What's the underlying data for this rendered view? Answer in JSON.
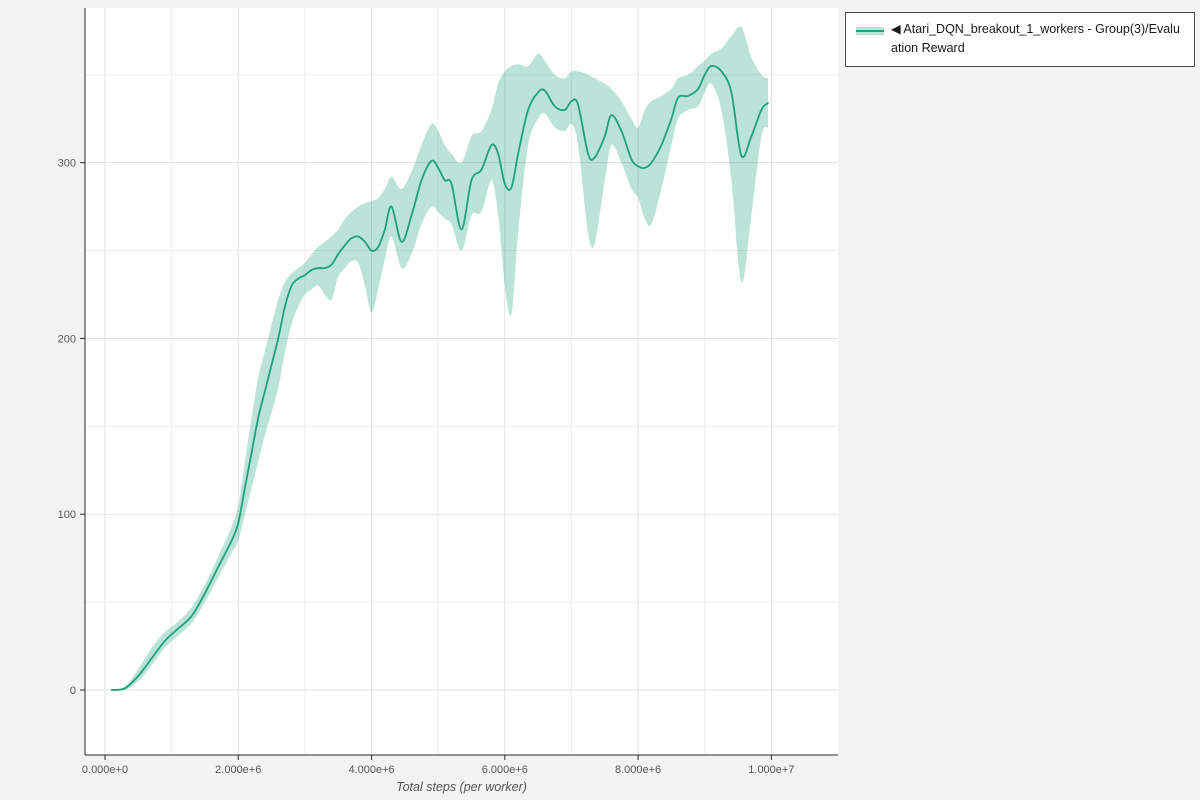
{
  "page": {
    "background": "#f3f3f4",
    "plot_background": "#ffffff"
  },
  "legend": {
    "label": "◀ Atari_DQN_breakout_1_workers - Group(3)/Evaluation Reward",
    "border_color": "#4a4a4a",
    "background": "#ffffff"
  },
  "chart_data": {
    "type": "line",
    "title": "",
    "xlabel": "Total steps (per worker)",
    "ylabel": "",
    "legend_position": "top-right-outside",
    "grid": true,
    "xlim": [
      -300000,
      11000000
    ],
    "ylim": [
      -37,
      388
    ],
    "x_tick_values": [
      0,
      2000000,
      4000000,
      6000000,
      8000000,
      10000000
    ],
    "x_tick_labels": [
      "0.000e+0",
      "2.000e+6",
      "4.000e+6",
      "6.000e+6",
      "8.000e+6",
      "1.000e+7"
    ],
    "y_tick_values": [
      0,
      100,
      200,
      300
    ],
    "y_tick_labels": [
      "0",
      "100",
      "200",
      "300"
    ],
    "x_minor_step": 1000000,
    "y_minor_step": 50,
    "series": [
      {
        "name": "Atari_DQN_breakout_1_workers - Group(3)/Evaluation Reward",
        "color": "#1fa179",
        "band_color": "#1fa179",
        "band_opacity": 0.3,
        "x": [
          100000,
          300000,
          500000,
          700000,
          900000,
          1100000,
          1300000,
          1500000,
          1700000,
          1900000,
          2000000,
          2100000,
          2200000,
          2300000,
          2400000,
          2500000,
          2600000,
          2700000,
          2800000,
          2900000,
          3000000,
          3100000,
          3200000,
          3300000,
          3400000,
          3500000,
          3600000,
          3700000,
          3800000,
          3900000,
          4000000,
          4100000,
          4200000,
          4300000,
          4450000,
          4600000,
          4750000,
          4900000,
          5000000,
          5100000,
          5200000,
          5350000,
          5500000,
          5650000,
          5800000,
          5900000,
          6000000,
          6100000,
          6200000,
          6350000,
          6500000,
          6600000,
          6750000,
          6900000,
          7000000,
          7100000,
          7250000,
          7350000,
          7500000,
          7600000,
          7750000,
          7900000,
          8000000,
          8100000,
          8200000,
          8350000,
          8500000,
          8600000,
          8750000,
          8900000,
          9000000,
          9100000,
          9250000,
          9400000,
          9550000,
          9700000,
          9850000,
          9950000
        ],
        "mean": [
          0,
          1,
          8,
          18,
          28,
          35,
          42,
          55,
          70,
          85,
          95,
          115,
          135,
          155,
          170,
          185,
          200,
          218,
          230,
          234,
          236,
          239,
          240,
          240,
          242,
          248,
          253,
          257,
          258,
          255,
          250,
          252,
          262,
          275,
          255,
          270,
          290,
          301,
          297,
          290,
          288,
          262,
          290,
          296,
          310,
          305,
          288,
          286,
          305,
          330,
          340,
          341,
          332,
          330,
          335,
          333,
          305,
          303,
          315,
          327,
          318,
          302,
          298,
          297,
          300,
          310,
          325,
          337,
          338,
          342,
          350,
          355,
          352,
          340,
          304,
          315,
          330,
          334
        ],
        "lower": [
          0,
          0,
          5,
          14,
          24,
          31,
          38,
          50,
          64,
          78,
          85,
          100,
          115,
          130,
          145,
          158,
          172,
          192,
          208,
          218,
          225,
          228,
          230,
          225,
          222,
          235,
          240,
          244,
          243,
          230,
          215,
          228,
          245,
          258,
          240,
          248,
          265,
          275,
          272,
          268,
          265,
          250,
          270,
          272,
          290,
          270,
          230,
          214,
          260,
          310,
          325,
          328,
          320,
          318,
          322,
          310,
          260,
          254,
          290,
          310,
          300,
          285,
          280,
          268,
          265,
          285,
          310,
          325,
          330,
          332,
          340,
          345,
          330,
          290,
          232,
          270,
          315,
          320
        ],
        "upper": [
          0,
          2,
          12,
          24,
          33,
          39,
          47,
          60,
          76,
          93,
          105,
          130,
          155,
          178,
          193,
          208,
          222,
          232,
          237,
          240,
          243,
          248,
          252,
          255,
          258,
          262,
          268,
          272,
          275,
          277,
          278,
          280,
          285,
          292,
          285,
          295,
          310,
          322,
          318,
          310,
          305,
          300,
          315,
          318,
          330,
          345,
          352,
          355,
          356,
          355,
          362,
          358,
          350,
          348,
          352,
          352,
          350,
          348,
          345,
          342,
          335,
          325,
          320,
          330,
          335,
          338,
          342,
          348,
          350,
          355,
          358,
          362,
          365,
          372,
          377,
          360,
          350,
          348
        ]
      }
    ]
  }
}
